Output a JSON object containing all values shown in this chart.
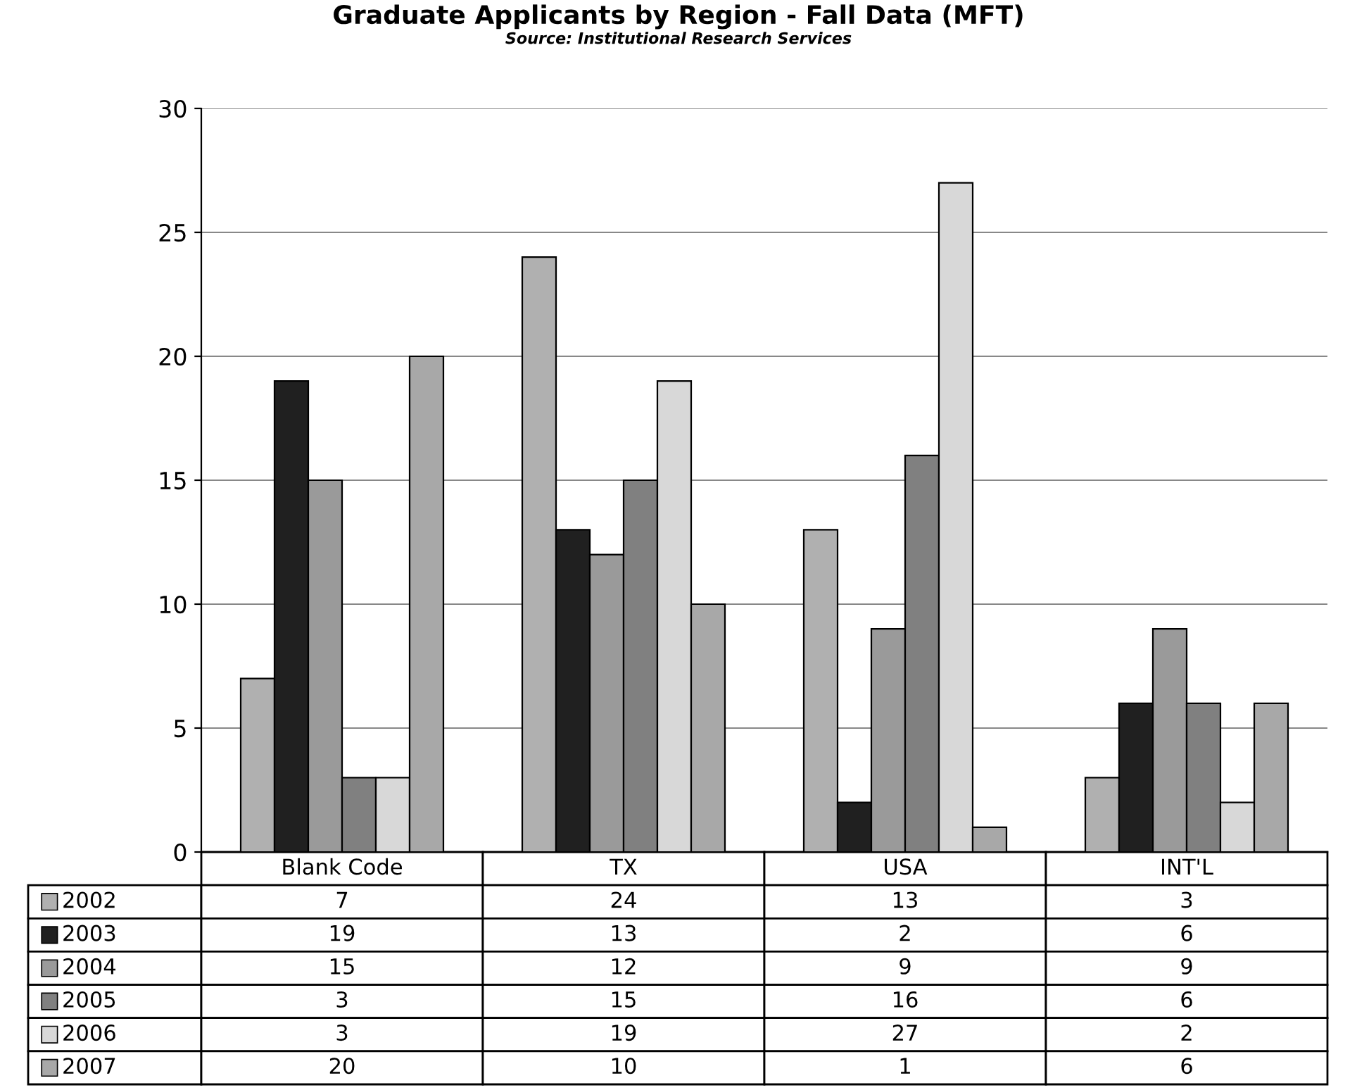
{
  "chart_data": {
    "type": "bar",
    "title": "Graduate Applicants by Region - Fall Data (MFT)",
    "subtitle": "Source: Institutional Research Services",
    "categories": [
      "Blank Code",
      "TX",
      "USA",
      "INT'L"
    ],
    "series": [
      {
        "name": "2002",
        "color": "#b0b0b0",
        "values": [
          7,
          24,
          13,
          3
        ]
      },
      {
        "name": "2003",
        "color": "#202020",
        "values": [
          19,
          13,
          2,
          6
        ]
      },
      {
        "name": "2004",
        "color": "#9a9a9a",
        "values": [
          15,
          12,
          9,
          9
        ]
      },
      {
        "name": "2005",
        "color": "#808080",
        "values": [
          3,
          15,
          16,
          6
        ]
      },
      {
        "name": "2006",
        "color": "#d8d8d8",
        "values": [
          3,
          19,
          27,
          2
        ]
      },
      {
        "name": "2007",
        "color": "#a8a8a8",
        "values": [
          20,
          10,
          1,
          6
        ]
      }
    ],
    "ylim": [
      0,
      30
    ],
    "yticks": [
      0,
      5,
      10,
      15,
      20,
      25,
      30
    ],
    "grid": "y",
    "data_labels": true,
    "legend": "bottom left"
  }
}
